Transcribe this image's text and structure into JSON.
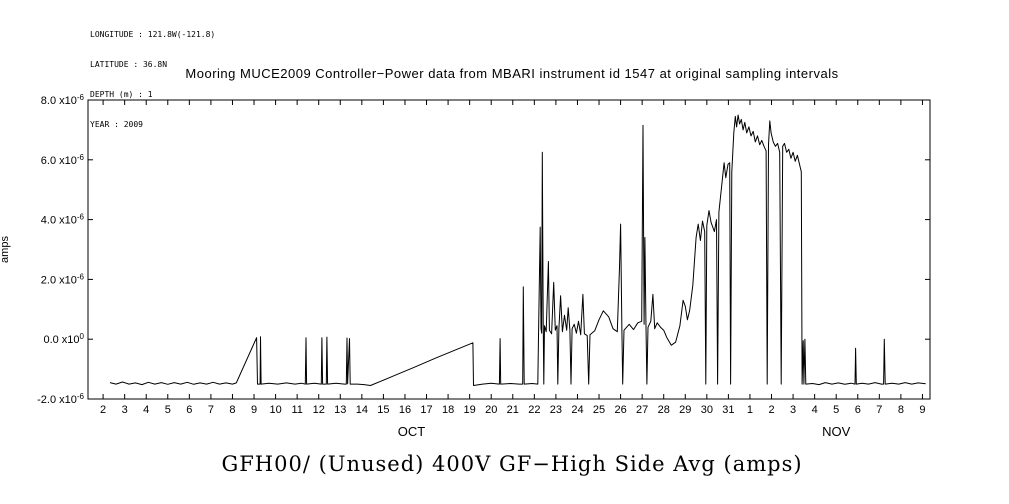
{
  "header": {
    "longitude": "LONGITUDE : 121.8W(-121.8)",
    "latitude": "LATITUDE : 36.8N",
    "depth": "DEPTH (m) : 1",
    "year": "YEAR : 2009"
  },
  "colors": {
    "line": "#000000",
    "background": "#ffffff",
    "text": "#000000"
  },
  "chart_data": {
    "type": "line",
    "title": "Mooring MUCE2009 Controller−Power data from MBARI instrument id 1547 at original sampling intervals",
    "ylabel": "amps",
    "xlabel": "",
    "ylim": [
      -2e-06,
      8e-06
    ],
    "point_value_unit": "1e-6 amps; x = days since Oct 2, 2009",
    "x_range_days": [
      -0.7,
      38.35
    ],
    "y_range_units": [
      -2,
      8
    ],
    "grid": false,
    "legend": "none",
    "y_ticks": [
      {
        "value": 8,
        "mantissa": "8.0",
        "exponent": "-6"
      },
      {
        "value": 6,
        "mantissa": "6.0",
        "exponent": "-6"
      },
      {
        "value": 4,
        "mantissa": "4.0",
        "exponent": "-6"
      },
      {
        "value": 2,
        "mantissa": "2.0",
        "exponent": "-6"
      },
      {
        "value": 0,
        "mantissa": "0.0",
        "exponent": "0"
      },
      {
        "value": -2,
        "mantissa": "-2.0",
        "exponent": "-6"
      }
    ],
    "x_ticks": [
      "2",
      "3",
      "4",
      "5",
      "6",
      "7",
      "8",
      "9",
      "10",
      "11",
      "12",
      "13",
      "14",
      "15",
      "16",
      "17",
      "18",
      "19",
      "20",
      "21",
      "22",
      "23",
      "24",
      "25",
      "26",
      "27",
      "28",
      "29",
      "30",
      "31",
      "1",
      "2",
      "3",
      "4",
      "5",
      "6",
      "7",
      "8",
      "9"
    ],
    "month_labels": [
      {
        "label": "OCT",
        "day": 14.3
      },
      {
        "label": "NOV",
        "day": 34.0
      }
    ],
    "series": [
      {
        "name": "GFH00/ (Unused) 400V GF−High Side Avg (amps)",
        "points": [
          [
            0.32,
            -1.45
          ],
          [
            0.6,
            -1.5
          ],
          [
            0.9,
            -1.43
          ],
          [
            1.2,
            -1.5
          ],
          [
            1.5,
            -1.46
          ],
          [
            1.8,
            -1.52
          ],
          [
            2.1,
            -1.44
          ],
          [
            2.4,
            -1.5
          ],
          [
            2.7,
            -1.45
          ],
          [
            3.0,
            -1.51
          ],
          [
            3.3,
            -1.45
          ],
          [
            3.6,
            -1.5
          ],
          [
            3.9,
            -1.44
          ],
          [
            4.2,
            -1.51
          ],
          [
            4.5,
            -1.46
          ],
          [
            4.8,
            -1.5
          ],
          [
            5.1,
            -1.44
          ],
          [
            5.4,
            -1.5
          ],
          [
            5.7,
            -1.46
          ],
          [
            6.0,
            -1.5
          ],
          [
            6.18,
            -1.46
          ],
          [
            7.12,
            0.05
          ],
          [
            7.16,
            -1.5
          ],
          [
            7.28,
            -1.5
          ],
          [
            7.3,
            0.08
          ],
          [
            7.33,
            -1.5
          ],
          [
            7.7,
            -1.47
          ],
          [
            8.1,
            -1.5
          ],
          [
            8.5,
            -1.46
          ],
          [
            8.9,
            -1.5
          ],
          [
            9.2,
            -1.47
          ],
          [
            9.38,
            -1.5
          ],
          [
            9.41,
            0.05
          ],
          [
            9.44,
            -1.5
          ],
          [
            9.8,
            -1.47
          ],
          [
            10.12,
            -1.5
          ],
          [
            10.15,
            0.05
          ],
          [
            10.18,
            -1.5
          ],
          [
            10.35,
            -1.5
          ],
          [
            10.38,
            0.07
          ],
          [
            10.41,
            -1.5
          ],
          [
            10.8,
            -1.47
          ],
          [
            11.2,
            -1.5
          ],
          [
            11.28,
            -1.5
          ],
          [
            11.31,
            0.04
          ],
          [
            11.34,
            -1.49
          ],
          [
            11.43,
            0.02
          ],
          [
            11.46,
            -1.5
          ],
          [
            11.8,
            -1.5
          ],
          [
            12.1,
            -1.52
          ],
          [
            12.4,
            -1.55
          ],
          [
            13.4,
            -1.25
          ],
          [
            14.4,
            -0.95
          ],
          [
            15.4,
            -0.64
          ],
          [
            16.4,
            -0.34
          ],
          [
            17.15,
            -0.12
          ],
          [
            17.18,
            -1.55
          ],
          [
            17.6,
            -1.5
          ],
          [
            18.0,
            -1.47
          ],
          [
            18.38,
            -1.5
          ],
          [
            18.41,
            0.02
          ],
          [
            18.44,
            -1.5
          ],
          [
            18.9,
            -1.48
          ],
          [
            19.3,
            -1.5
          ],
          [
            19.46,
            -1.5
          ],
          [
            19.49,
            1.75
          ],
          [
            19.53,
            -1.5
          ],
          [
            19.9,
            -1.48
          ],
          [
            20.16,
            -1.5
          ],
          [
            20.2,
            0.3
          ],
          [
            20.27,
            3.75
          ],
          [
            20.31,
            0.35
          ],
          [
            20.34,
            0.2
          ],
          [
            20.37,
            6.25
          ],
          [
            20.41,
            0.6
          ],
          [
            20.44,
            -1.5
          ],
          [
            20.47,
            0.45
          ],
          [
            20.55,
            0.25
          ],
          [
            20.65,
            2.6
          ],
          [
            20.7,
            0.3
          ],
          [
            20.8,
            0.18
          ],
          [
            20.9,
            1.9
          ],
          [
            20.97,
            0.3
          ],
          [
            21.05,
            0.45
          ],
          [
            21.09,
            -1.5
          ],
          [
            21.14,
            0.35
          ],
          [
            21.22,
            1.45
          ],
          [
            21.3,
            0.25
          ],
          [
            21.4,
            0.8
          ],
          [
            21.5,
            0.3
          ],
          [
            21.57,
            1.05
          ],
          [
            21.65,
            0.3
          ],
          [
            21.7,
            -1.5
          ],
          [
            21.75,
            0.35
          ],
          [
            21.85,
            0.5
          ],
          [
            21.95,
            0.2
          ],
          [
            22.05,
            0.6
          ],
          [
            22.15,
            0.15
          ],
          [
            22.25,
            1.5
          ],
          [
            22.32,
            0.18
          ],
          [
            22.45,
            0.12
          ],
          [
            22.52,
            -1.5
          ],
          [
            22.58,
            0.15
          ],
          [
            22.8,
            0.28
          ],
          [
            23.0,
            0.65
          ],
          [
            23.2,
            0.95
          ],
          [
            23.45,
            0.75
          ],
          [
            23.65,
            0.35
          ],
          [
            23.85,
            0.25
          ],
          [
            23.95,
            2.4
          ],
          [
            24.0,
            3.85
          ],
          [
            24.06,
            0.3
          ],
          [
            24.1,
            -1.5
          ],
          [
            24.16,
            0.3
          ],
          [
            24.4,
            0.5
          ],
          [
            24.6,
            0.32
          ],
          [
            24.8,
            0.55
          ],
          [
            24.98,
            0.6
          ],
          [
            25.04,
            7.15
          ],
          [
            25.09,
            0.5
          ],
          [
            25.13,
            3.4
          ],
          [
            25.18,
            0.4
          ],
          [
            25.22,
            -1.5
          ],
          [
            25.27,
            0.4
          ],
          [
            25.4,
            0.6
          ],
          [
            25.5,
            1.5
          ],
          [
            25.58,
            0.35
          ],
          [
            25.7,
            0.55
          ],
          [
            25.85,
            0.4
          ],
          [
            26.0,
            0.3
          ],
          [
            26.15,
            0.05
          ],
          [
            26.35,
            -0.2
          ],
          [
            26.55,
            -0.1
          ],
          [
            26.75,
            0.45
          ],
          [
            26.9,
            1.3
          ],
          [
            27.0,
            1.1
          ],
          [
            27.1,
            0.65
          ],
          [
            27.2,
            0.95
          ],
          [
            27.35,
            1.8
          ],
          [
            27.5,
            3.4
          ],
          [
            27.6,
            3.85
          ],
          [
            27.7,
            3.3
          ],
          [
            27.8,
            3.95
          ],
          [
            27.9,
            3.6
          ],
          [
            27.95,
            -1.5
          ],
          [
            28.0,
            3.8
          ],
          [
            28.1,
            4.3
          ],
          [
            28.2,
            3.9
          ],
          [
            28.35,
            3.6
          ],
          [
            28.45,
            4.0
          ],
          [
            28.5,
            -1.5
          ],
          [
            28.56,
            4.25
          ],
          [
            28.7,
            5.2
          ],
          [
            28.8,
            5.9
          ],
          [
            28.88,
            5.4
          ],
          [
            28.98,
            5.85
          ],
          [
            29.06,
            5.9
          ],
          [
            29.1,
            -1.5
          ],
          [
            29.16,
            5.6
          ],
          [
            29.25,
            6.9
          ],
          [
            29.32,
            7.45
          ],
          [
            29.38,
            7.1
          ],
          [
            29.45,
            7.5
          ],
          [
            29.52,
            7.2
          ],
          [
            29.6,
            7.35
          ],
          [
            29.68,
            7.0
          ],
          [
            29.76,
            7.25
          ],
          [
            29.85,
            6.9
          ],
          [
            29.95,
            7.1
          ],
          [
            30.05,
            6.8
          ],
          [
            30.15,
            6.95
          ],
          [
            30.25,
            6.6
          ],
          [
            30.35,
            6.8
          ],
          [
            30.45,
            6.5
          ],
          [
            30.55,
            6.65
          ],
          [
            30.65,
            6.45
          ],
          [
            30.75,
            6.3
          ],
          [
            30.8,
            -1.5
          ],
          [
            30.86,
            6.5
          ],
          [
            30.92,
            7.3
          ],
          [
            30.98,
            6.9
          ],
          [
            31.08,
            6.6
          ],
          [
            31.18,
            6.45
          ],
          [
            31.28,
            6.55
          ],
          [
            31.38,
            6.25
          ],
          [
            31.45,
            -1.5
          ],
          [
            31.52,
            6.45
          ],
          [
            31.6,
            6.55
          ],
          [
            31.7,
            6.25
          ],
          [
            31.8,
            6.35
          ],
          [
            31.9,
            6.05
          ],
          [
            32.0,
            6.25
          ],
          [
            32.1,
            5.95
          ],
          [
            32.2,
            6.15
          ],
          [
            32.3,
            5.85
          ],
          [
            32.38,
            5.6
          ],
          [
            32.42,
            -1.5
          ],
          [
            32.47,
            -0.05
          ],
          [
            32.5,
            -1.5
          ],
          [
            32.55,
            0.0
          ],
          [
            32.59,
            -1.5
          ],
          [
            32.9,
            -1.48
          ],
          [
            33.2,
            -1.52
          ],
          [
            33.5,
            -1.45
          ],
          [
            33.8,
            -1.5
          ],
          [
            34.1,
            -1.46
          ],
          [
            34.4,
            -1.51
          ],
          [
            34.7,
            -1.47
          ],
          [
            34.87,
            -1.5
          ],
          [
            34.9,
            -0.3
          ],
          [
            34.93,
            -1.5
          ],
          [
            35.2,
            -1.47
          ],
          [
            35.5,
            -1.5
          ],
          [
            35.8,
            -1.45
          ],
          [
            36.1,
            -1.5
          ],
          [
            36.2,
            -1.5
          ],
          [
            36.23,
            0.0
          ],
          [
            36.27,
            -1.5
          ],
          [
            36.6,
            -1.47
          ],
          [
            36.9,
            -1.5
          ],
          [
            37.2,
            -1.45
          ],
          [
            37.5,
            -1.5
          ],
          [
            37.8,
            -1.46
          ],
          [
            38.15,
            -1.49
          ]
        ]
      }
    ]
  }
}
